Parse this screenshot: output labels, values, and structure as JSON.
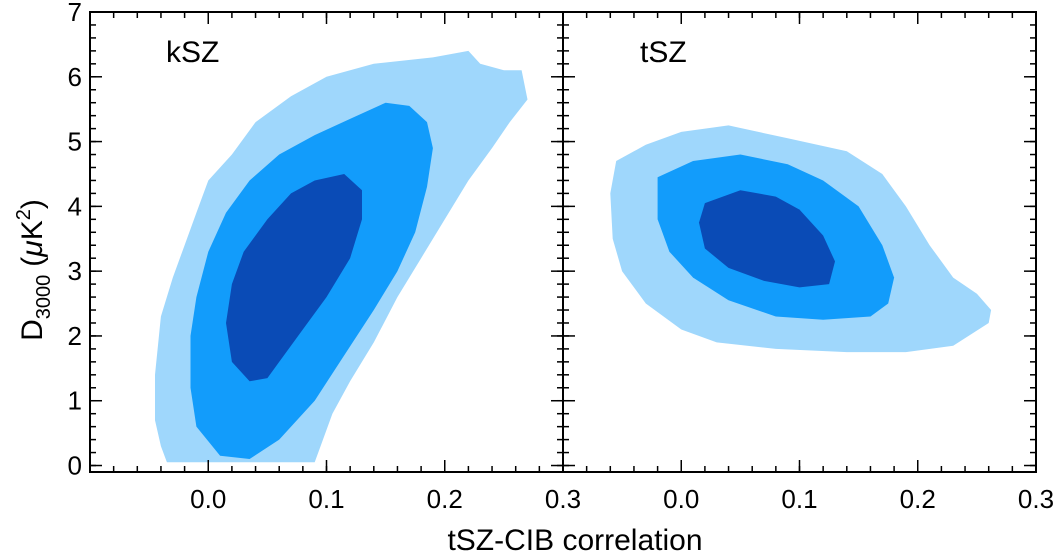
{
  "figure": {
    "xlabel": "tSZ-CIB correlation",
    "ylabel_main": "D",
    "ylabel_sub": "3000",
    "ylabel_unit_open": "(",
    "ylabel_unit_mu": "μ",
    "ylabel_unit_K": "K",
    "ylabel_unit_exp": "2",
    "ylabel_unit_close": ")"
  },
  "colors": {
    "level_68": "#0a4bb6",
    "level_95": "#129cfb",
    "level_99": "#9fd7fc",
    "axis": "#000000"
  },
  "chart_data": [
    {
      "type": "contour",
      "panel_label": "kSZ",
      "xlim": [
        -0.1,
        0.3
      ],
      "ylim": [
        -0.1,
        7
      ],
      "xticks": [
        0.0,
        0.1,
        0.2,
        0.3
      ],
      "xtick_labels": [
        "0.0",
        "0.1",
        "0.2",
        "0.3"
      ],
      "yticks": [
        0,
        1,
        2,
        3,
        4,
        5,
        6,
        7
      ],
      "ytick_labels": [
        "0",
        "1",
        "2",
        "3",
        "4",
        "5",
        "6",
        "7"
      ],
      "contours": [
        {
          "level": "outer",
          "color": "#9fd7fc",
          "points": [
            [
              -0.035,
              0.05
            ],
            [
              -0.04,
              0.3
            ],
            [
              -0.045,
              0.7
            ],
            [
              -0.045,
              1.4
            ],
            [
              -0.04,
              2.3
            ],
            [
              -0.03,
              2.9
            ],
            [
              -0.02,
              3.4
            ],
            [
              -0.01,
              3.9
            ],
            [
              0.0,
              4.4
            ],
            [
              0.02,
              4.8
            ],
            [
              0.04,
              5.3
            ],
            [
              0.07,
              5.7
            ],
            [
              0.1,
              6.0
            ],
            [
              0.14,
              6.2
            ],
            [
              0.19,
              6.3
            ],
            [
              0.22,
              6.4
            ],
            [
              0.23,
              6.2
            ],
            [
              0.25,
              6.1
            ],
            [
              0.265,
              6.1
            ],
            [
              0.27,
              5.65
            ],
            [
              0.255,
              5.3
            ],
            [
              0.24,
              4.9
            ],
            [
              0.22,
              4.4
            ],
            [
              0.2,
              3.8
            ],
            [
              0.18,
              3.2
            ],
            [
              0.16,
              2.6
            ],
            [
              0.14,
              1.9
            ],
            [
              0.12,
              1.3
            ],
            [
              0.105,
              0.8
            ],
            [
              0.095,
              0.3
            ],
            [
              0.09,
              0.05
            ]
          ]
        },
        {
          "level": "middle",
          "color": "#129cfb",
          "points": [
            [
              0.01,
              0.15
            ],
            [
              -0.01,
              0.6
            ],
            [
              -0.015,
              1.2
            ],
            [
              -0.015,
              2.0
            ],
            [
              -0.01,
              2.6
            ],
            [
              0.0,
              3.3
            ],
            [
              0.015,
              3.9
            ],
            [
              0.035,
              4.4
            ],
            [
              0.06,
              4.8
            ],
            [
              0.09,
              5.1
            ],
            [
              0.12,
              5.35
            ],
            [
              0.15,
              5.6
            ],
            [
              0.17,
              5.55
            ],
            [
              0.185,
              5.3
            ],
            [
              0.19,
              4.9
            ],
            [
              0.185,
              4.3
            ],
            [
              0.175,
              3.6
            ],
            [
              0.16,
              3.0
            ],
            [
              0.14,
              2.4
            ],
            [
              0.115,
              1.7
            ],
            [
              0.09,
              1.0
            ],
            [
              0.06,
              0.4
            ],
            [
              0.035,
              0.1
            ]
          ]
        },
        {
          "level": "inner",
          "color": "#0a4bb6",
          "points": [
            [
              0.035,
              1.3
            ],
            [
              0.02,
              1.6
            ],
            [
              0.015,
              2.2
            ],
            [
              0.02,
              2.8
            ],
            [
              0.03,
              3.3
            ],
            [
              0.05,
              3.8
            ],
            [
              0.07,
              4.2
            ],
            [
              0.09,
              4.4
            ],
            [
              0.115,
              4.5
            ],
            [
              0.13,
              4.25
            ],
            [
              0.13,
              3.8
            ],
            [
              0.12,
              3.2
            ],
            [
              0.1,
              2.6
            ],
            [
              0.08,
              2.1
            ],
            [
              0.06,
              1.6
            ],
            [
              0.05,
              1.35
            ]
          ]
        }
      ]
    },
    {
      "type": "contour",
      "panel_label": "tSZ",
      "xlim": [
        -0.1,
        0.3
      ],
      "ylim": [
        -0.1,
        7
      ],
      "xticks": [
        0.0,
        0.1,
        0.2,
        0.3
      ],
      "xtick_labels": [
        "0.0",
        "0.1",
        "0.2",
        "0.3"
      ],
      "yticks": [
        0,
        1,
        2,
        3,
        4,
        5,
        6,
        7
      ],
      "ytick_labels": [],
      "contours": [
        {
          "level": "outer",
          "color": "#9fd7fc",
          "points": [
            [
              -0.055,
              4.7
            ],
            [
              -0.03,
              4.95
            ],
            [
              0.0,
              5.15
            ],
            [
              0.04,
              5.25
            ],
            [
              0.09,
              5.05
            ],
            [
              0.14,
              4.85
            ],
            [
              0.17,
              4.5
            ],
            [
              0.19,
              4.0
            ],
            [
              0.21,
              3.4
            ],
            [
              0.23,
              2.9
            ],
            [
              0.25,
              2.65
            ],
            [
              0.262,
              2.4
            ],
            [
              0.26,
              2.2
            ],
            [
              0.23,
              1.85
            ],
            [
              0.19,
              1.75
            ],
            [
              0.14,
              1.75
            ],
            [
              0.08,
              1.8
            ],
            [
              0.03,
              1.9
            ],
            [
              0.0,
              2.1
            ],
            [
              -0.03,
              2.5
            ],
            [
              -0.05,
              3.0
            ],
            [
              -0.058,
              3.5
            ],
            [
              -0.06,
              4.2
            ]
          ]
        },
        {
          "level": "middle",
          "color": "#129cfb",
          "points": [
            [
              -0.02,
              4.45
            ],
            [
              0.01,
              4.7
            ],
            [
              0.05,
              4.8
            ],
            [
              0.09,
              4.65
            ],
            [
              0.12,
              4.4
            ],
            [
              0.15,
              4.0
            ],
            [
              0.17,
              3.4
            ],
            [
              0.18,
              2.9
            ],
            [
              0.175,
              2.5
            ],
            [
              0.16,
              2.3
            ],
            [
              0.12,
              2.25
            ],
            [
              0.08,
              2.3
            ],
            [
              0.04,
              2.55
            ],
            [
              0.01,
              2.9
            ],
            [
              -0.01,
              3.3
            ],
            [
              -0.02,
              3.8
            ]
          ]
        },
        {
          "level": "inner",
          "color": "#0a4bb6",
          "points": [
            [
              0.02,
              4.05
            ],
            [
              0.05,
              4.25
            ],
            [
              0.08,
              4.15
            ],
            [
              0.1,
              3.95
            ],
            [
              0.12,
              3.55
            ],
            [
              0.13,
              3.15
            ],
            [
              0.125,
              2.8
            ],
            [
              0.1,
              2.75
            ],
            [
              0.07,
              2.85
            ],
            [
              0.04,
              3.05
            ],
            [
              0.02,
              3.35
            ],
            [
              0.015,
              3.75
            ]
          ]
        }
      ]
    }
  ]
}
